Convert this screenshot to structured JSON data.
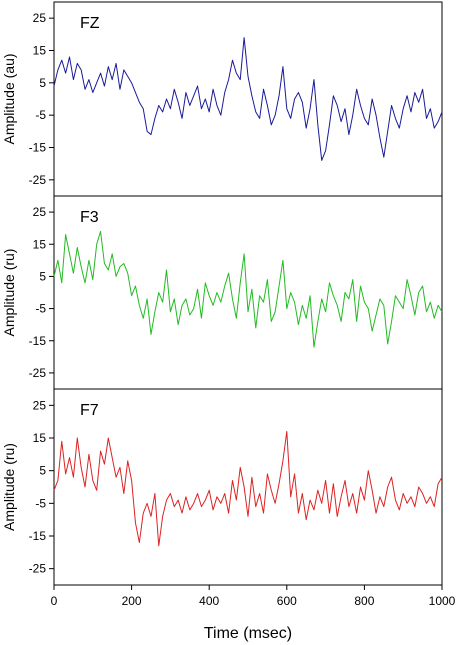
{
  "chart_data": [
    {
      "type": "line",
      "title": "FZ",
      "ylabel": "Amplitude (au)",
      "ylim": [
        -30,
        30
      ],
      "xlim": [
        0,
        1000
      ],
      "yticks": [
        "25",
        "15",
        "5",
        "-5",
        "-15",
        "-25"
      ],
      "grid": false,
      "color": "#1a1a99",
      "x": [
        0,
        10,
        20,
        30,
        40,
        50,
        60,
        70,
        80,
        90,
        100,
        110,
        120,
        130,
        140,
        150,
        160,
        170,
        180,
        190,
        200,
        210,
        220,
        230,
        240,
        250,
        260,
        270,
        280,
        290,
        300,
        310,
        320,
        330,
        340,
        350,
        360,
        370,
        380,
        390,
        400,
        410,
        420,
        430,
        440,
        450,
        460,
        470,
        480,
        490,
        500,
        510,
        520,
        530,
        540,
        550,
        560,
        570,
        580,
        590,
        600,
        610,
        620,
        630,
        640,
        650,
        660,
        670,
        680,
        690,
        700,
        710,
        720,
        730,
        740,
        750,
        760,
        770,
        780,
        790,
        800,
        810,
        820,
        830,
        840,
        850,
        860,
        870,
        880,
        890,
        900,
        910,
        920,
        930,
        940,
        950,
        960,
        970,
        980,
        990,
        1000
      ],
      "values": [
        4,
        9,
        12,
        8,
        13,
        6,
        11,
        9,
        3,
        6,
        2,
        5,
        8,
        4,
        10,
        6,
        11,
        3,
        9,
        7,
        5,
        2,
        -1,
        -3,
        -10,
        -11,
        -6,
        -2,
        -4,
        0,
        -3,
        3,
        -1,
        -6,
        2,
        -2,
        1,
        4,
        -3,
        0,
        -4,
        3,
        -2,
        -5,
        2,
        6,
        12,
        8,
        6,
        19,
        7,
        1,
        -4,
        -6,
        3,
        -2,
        -8,
        -5,
        1,
        10,
        -3,
        -6,
        0,
        2,
        -1,
        -9,
        -3,
        6,
        -8,
        -19,
        -16,
        -8,
        1,
        -2,
        -7,
        -3,
        -11,
        -5,
        3,
        -2,
        -6,
        -8,
        0,
        -5,
        -12,
        -18,
        -10,
        -2,
        -6,
        -9,
        -3,
        1,
        -4,
        2,
        -1,
        3,
        -6,
        -3,
        -9,
        -7,
        -4
      ]
    },
    {
      "type": "line",
      "title": "F3",
      "ylabel": "Amplitude (ru)",
      "ylim": [
        -30,
        30
      ],
      "xlim": [
        0,
        1000
      ],
      "yticks": [
        "25",
        "15",
        "5",
        "-5",
        "-15",
        "-25"
      ],
      "grid": false,
      "color": "#22bb22",
      "x": [
        0,
        10,
        20,
        30,
        40,
        50,
        60,
        70,
        80,
        90,
        100,
        110,
        120,
        130,
        140,
        150,
        160,
        170,
        180,
        190,
        200,
        210,
        220,
        230,
        240,
        250,
        260,
        270,
        280,
        290,
        300,
        310,
        320,
        330,
        340,
        350,
        360,
        370,
        380,
        390,
        400,
        410,
        420,
        430,
        440,
        450,
        460,
        470,
        480,
        490,
        500,
        510,
        520,
        530,
        540,
        550,
        560,
        570,
        580,
        590,
        600,
        610,
        620,
        630,
        640,
        650,
        660,
        670,
        680,
        690,
        700,
        710,
        720,
        730,
        740,
        750,
        760,
        770,
        780,
        790,
        800,
        810,
        820,
        830,
        840,
        850,
        860,
        870,
        880,
        890,
        900,
        910,
        920,
        930,
        940,
        950,
        960,
        970,
        980,
        990,
        1000
      ],
      "values": [
        5,
        10,
        3,
        18,
        12,
        6,
        14,
        8,
        3,
        10,
        4,
        15,
        19,
        9,
        7,
        12,
        5,
        8,
        9,
        6,
        -1,
        2,
        -4,
        -8,
        -2,
        -13,
        -6,
        0,
        -3,
        7,
        -6,
        -2,
        -10,
        -4,
        -2,
        -7,
        -5,
        1,
        -8,
        3,
        -1,
        -4,
        0,
        -3,
        2,
        6,
        -2,
        -8,
        3,
        12,
        -6,
        1,
        -11,
        -1,
        -3,
        4,
        -9,
        -6,
        2,
        10,
        -5,
        0,
        -3,
        -10,
        -4,
        -8,
        -1,
        -17,
        -9,
        -2,
        -6,
        3,
        -1,
        -4,
        -9,
        0,
        -2,
        4,
        -9,
        2,
        -3,
        -5,
        -12,
        -7,
        -2,
        -4,
        -16,
        -9,
        -1,
        -3,
        -5,
        4,
        -1,
        -7,
        0,
        2,
        -6,
        -3,
        -8,
        -4,
        -6
      ]
    },
    {
      "type": "line",
      "title": "F7",
      "xlabel": "Time (msec)",
      "ylabel": "Amplitude (ru)",
      "ylim": [
        -30,
        30
      ],
      "xlim": [
        0,
        1000
      ],
      "xticks": [
        "0",
        "200",
        "400",
        "600",
        "800",
        "1000"
      ],
      "yticks": [
        "25",
        "15",
        "5",
        "-5",
        "-15",
        "-25"
      ],
      "grid": false,
      "color": "#dd2222",
      "x": [
        0,
        10,
        20,
        30,
        40,
        50,
        60,
        70,
        80,
        90,
        100,
        110,
        120,
        130,
        140,
        150,
        160,
        170,
        180,
        190,
        200,
        210,
        220,
        230,
        240,
        250,
        260,
        270,
        280,
        290,
        300,
        310,
        320,
        330,
        340,
        350,
        360,
        370,
        380,
        390,
        400,
        410,
        420,
        430,
        440,
        450,
        460,
        470,
        480,
        490,
        500,
        510,
        520,
        530,
        540,
        550,
        560,
        570,
        580,
        590,
        600,
        610,
        620,
        630,
        640,
        650,
        660,
        670,
        680,
        690,
        700,
        710,
        720,
        730,
        740,
        750,
        760,
        770,
        780,
        790,
        800,
        810,
        820,
        830,
        840,
        850,
        860,
        870,
        880,
        890,
        900,
        910,
        920,
        930,
        940,
        950,
        960,
        970,
        980,
        990,
        1000
      ],
      "values": [
        -1,
        2,
        14,
        4,
        9,
        3,
        15,
        6,
        0,
        10,
        2,
        -1,
        11,
        7,
        15,
        9,
        3,
        6,
        -2,
        8,
        2,
        -11,
        -17,
        -8,
        -5,
        -9,
        -2,
        -18,
        -9,
        -4,
        -2,
        -6,
        -4,
        -8,
        -3,
        -7,
        -5,
        -2,
        -6,
        -4,
        -1,
        -7,
        -3,
        -5,
        -2,
        -8,
        2,
        -4,
        6,
        0,
        -9,
        3,
        -6,
        -2,
        -8,
        4,
        -1,
        -5,
        1,
        8,
        17,
        -3,
        4,
        -8,
        -2,
        -10,
        -4,
        -7,
        -1,
        -5,
        2,
        -8,
        1,
        -9,
        -3,
        2,
        -6,
        -2,
        -8,
        0,
        -4,
        5,
        -1,
        -8,
        -3,
        -6,
        0,
        3,
        -4,
        -7,
        -2,
        -5,
        -3,
        -6,
        0,
        -2,
        -5,
        -3,
        -6,
        1,
        3
      ]
    }
  ]
}
